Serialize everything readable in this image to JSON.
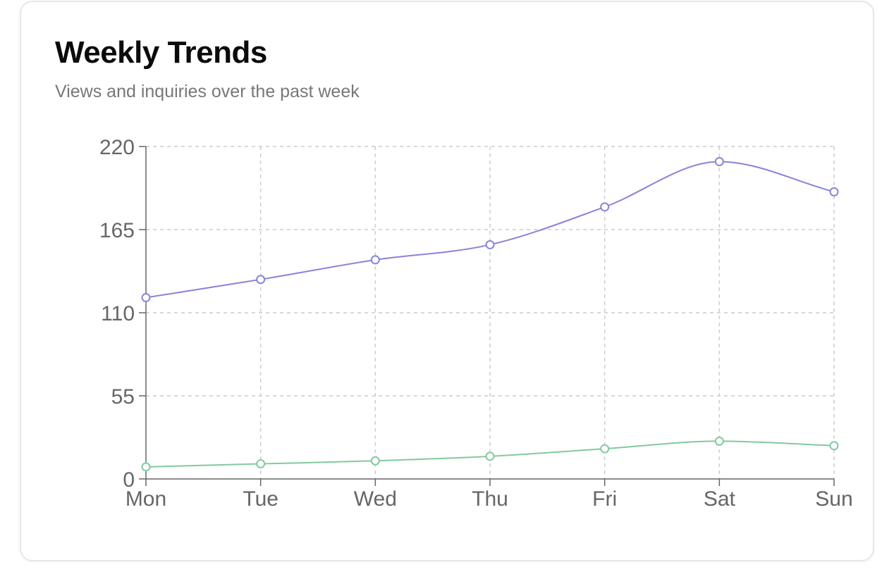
{
  "card": {
    "title": "Weekly Trends",
    "subtitle": "Views and inquiries over the past week"
  },
  "chart_data": {
    "type": "line",
    "title": "Weekly Trends",
    "subtitle": "Views and inquiries over the past week",
    "categories": [
      "Mon",
      "Tue",
      "Wed",
      "Thu",
      "Fri",
      "Sat",
      "Sun"
    ],
    "series": [
      {
        "values": [
          120,
          132,
          145,
          155,
          180,
          210,
          190
        ],
        "color": "#8884d8"
      },
      {
        "values": [
          8,
          10,
          12,
          15,
          20,
          25,
          22
        ],
        "color": "#82ca9d"
      }
    ],
    "y_ticks": [
      0,
      55,
      110,
      165,
      220
    ],
    "ylim": [
      0,
      220
    ],
    "grid": true,
    "legend": "none",
    "curve": "smooth",
    "xlabel": "",
    "ylabel": ""
  }
}
